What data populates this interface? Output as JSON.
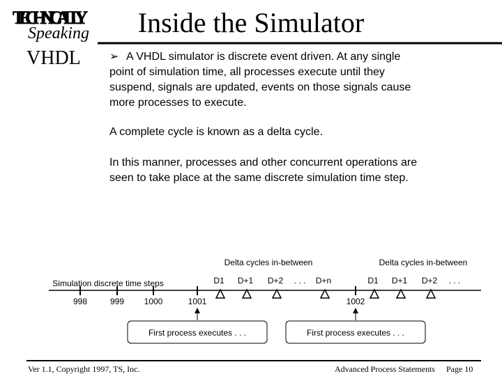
{
  "logo": {
    "line1": "TECHNICALLY",
    "line2": "Speaking"
  },
  "header": {
    "title": "Inside the Simulator",
    "section": "VHDL"
  },
  "body": {
    "bullet": "➢",
    "paragraph1": [
      "A  VHDL simulator is discrete event driven.   At any single",
      "point  of   simulation  time,  all  processes  execute  until they",
      "suspend,  signals are updated, events on those signals cause",
      "more processes to execute."
    ],
    "paragraph2": "A complete cycle is known as a delta cycle.",
    "paragraph3": [
      "In this manner, processes and other concurrent operations are",
      "seen to take place at the same discrete simulation time step."
    ]
  },
  "diagram": {
    "axis_label": "Simulation  discrete time steps",
    "time_steps": [
      "998",
      "999",
      "1000",
      "1001",
      "1002"
    ],
    "delta_group1": {
      "title": "Delta cycles in-between",
      "labels": [
        "D1",
        "D+1",
        "D+2",
        ". . .",
        "D+n"
      ]
    },
    "delta_group2": {
      "title": "Delta cycles in-between",
      "labels": [
        "D1",
        "D+1",
        "D+2",
        ". . ."
      ]
    },
    "box1": "First process  executes . . .",
    "box2": "First process  executes . . ."
  },
  "footer": {
    "left": "Ver  1.1, Copyright 1997, TS, Inc.",
    "center": "Advanced Process Statements",
    "right": "Page  10"
  }
}
